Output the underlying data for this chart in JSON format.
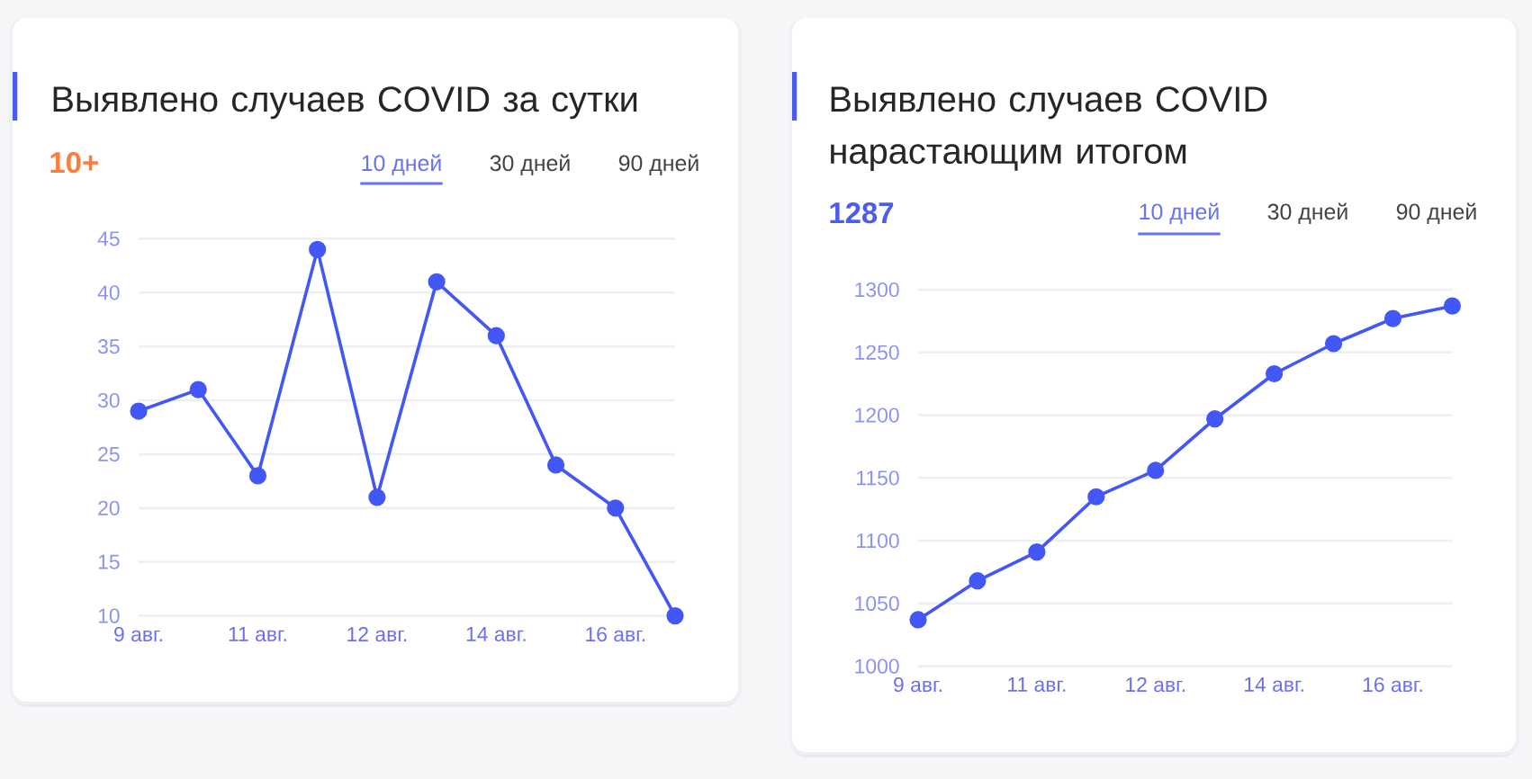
{
  "chart_data": [
    {
      "type": "line",
      "title": "Выявлено случаев COVID за сутки",
      "subtitle": "10+",
      "annotations": [
        "10 дней",
        "30 дней",
        "90 дней"
      ],
      "categories": [
        "9 авг.",
        null,
        "11 авг.",
        null,
        "12 авг.",
        null,
        "14 авг.",
        null,
        "16 авг.",
        null
      ],
      "values": [
        29,
        31,
        23,
        44,
        21,
        41,
        36,
        24,
        20,
        10
      ],
      "color": "#4257f5",
      "ylim": [
        10,
        45
      ],
      "yticks": [
        10,
        15,
        20,
        25,
        30,
        35,
        40,
        45
      ],
      "grid": "y",
      "marker": "circle",
      "line_style": "solid"
    },
    {
      "type": "line",
      "title": "Выявлено случаев COVID нарастающим итогом",
      "subtitle": "1287",
      "annotations": [
        "10 дней",
        "30 дней",
        "90 дней"
      ],
      "categories": [
        "9 авг.",
        null,
        "11 авг.",
        null,
        "12 авг.",
        null,
        "14 авг.",
        null,
        "16 авг.",
        null
      ],
      "values": [
        1037,
        1068,
        1091,
        1135,
        1156,
        1197,
        1233,
        1257,
        1277,
        1287
      ],
      "color": "#4257f5",
      "ylim": [
        1000,
        1300
      ],
      "yticks": [
        1000,
        1050,
        1100,
        1150,
        1200,
        1250,
        1300
      ],
      "grid": "y",
      "marker": "circle",
      "line_style": "solid"
    }
  ]
}
